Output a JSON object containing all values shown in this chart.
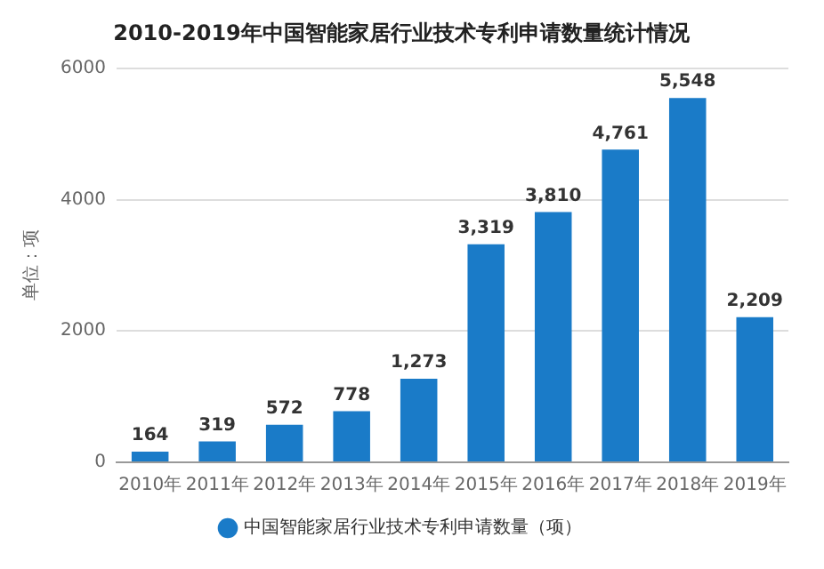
{
  "chart_data": {
    "type": "bar",
    "title": "2010-2019年中国智能家居行业技术专利申请数量统计情况",
    "ylabel": "单位：项",
    "categories": [
      "2010年",
      "2011年",
      "2012年",
      "2013年",
      "2014年",
      "2015年",
      "2016年",
      "2017年",
      "2018年",
      "2019年"
    ],
    "series": [
      {
        "name": "中国智能家居行业技术专利申请数量（项）",
        "color": "#1a7bc8",
        "values": [
          164,
          319,
          572,
          778,
          1273,
          3319,
          3810,
          4761,
          5548,
          2209
        ],
        "value_labels": [
          "164",
          "319",
          "572",
          "778",
          "1,273",
          "3,319",
          "3,810",
          "4,761",
          "5,548",
          "2,209"
        ]
      }
    ],
    "ylim": [
      0,
      6000
    ],
    "yticks": [
      0,
      2000,
      4000,
      6000
    ],
    "grid": "y",
    "legend": "bottom"
  }
}
